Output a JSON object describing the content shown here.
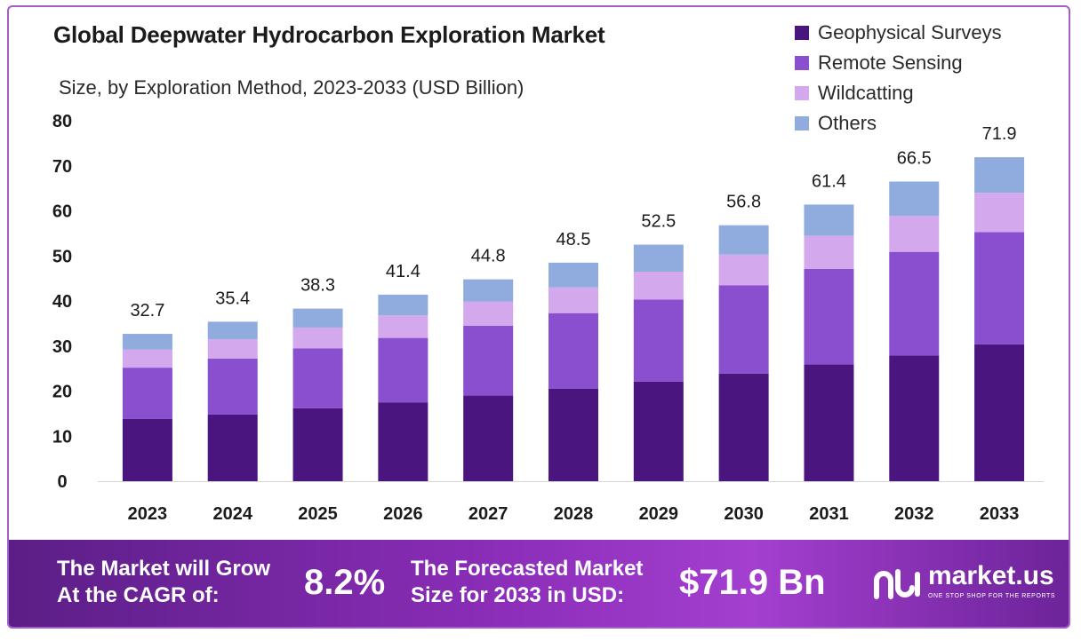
{
  "title": "Global Deepwater Hydrocarbon  Exploration Market",
  "subtitle": "Size, by Exploration Method, 2023-2033 (USD Billion)",
  "colors": {
    "geophysical": "#4b1580",
    "remote": "#8a4fce",
    "wildcatting": "#d3a8ec",
    "others": "#90abde"
  },
  "chart_data": {
    "type": "bar",
    "stacked": true,
    "categories": [
      "2023",
      "2024",
      "2025",
      "2026",
      "2027",
      "2028",
      "2029",
      "2030",
      "2031",
      "2032",
      "2033"
    ],
    "series": [
      {
        "name": "Geophysical Surveys",
        "values": [
          13.8,
          14.8,
          16.2,
          17.5,
          19.0,
          20.5,
          22.1,
          23.9,
          25.9,
          27.9,
          30.4
        ]
      },
      {
        "name": "Remote Sensing",
        "values": [
          11.4,
          12.4,
          13.3,
          14.3,
          15.5,
          16.8,
          18.2,
          19.6,
          21.2,
          23.0,
          24.9
        ]
      },
      {
        "name": "Wildcatting",
        "values": [
          4.0,
          4.3,
          4.6,
          5.0,
          5.4,
          5.7,
          6.2,
          6.8,
          7.4,
          8.0,
          8.7
        ]
      },
      {
        "name": "Others",
        "values": [
          3.5,
          3.9,
          4.2,
          4.6,
          4.9,
          5.5,
          6.0,
          6.5,
          6.9,
          7.6,
          7.9
        ]
      }
    ],
    "totals": [
      "32.7",
      "35.4",
      "38.3",
      "41.4",
      "44.8",
      "48.5",
      "52.5",
      "56.8",
      "61.4",
      "66.5",
      "71.9"
    ],
    "yticks": [
      "0",
      "10",
      "20",
      "30",
      "40",
      "50",
      "60",
      "70",
      "80"
    ],
    "ylim": [
      0,
      80
    ],
    "grid": false,
    "legend": "top-right"
  },
  "banner": {
    "cagr_line1": "The Market will Grow",
    "cagr_line2": "At the CAGR of:",
    "cagr_value": "8.2%",
    "forecast_line1": "The Forecasted Market",
    "forecast_line2": "Size for 2033 in USD:",
    "forecast_value": "$71.9 Bn",
    "logo_name": "market.us",
    "logo_tagline": "ONE STOP SHOP FOR THE REPORTS"
  }
}
